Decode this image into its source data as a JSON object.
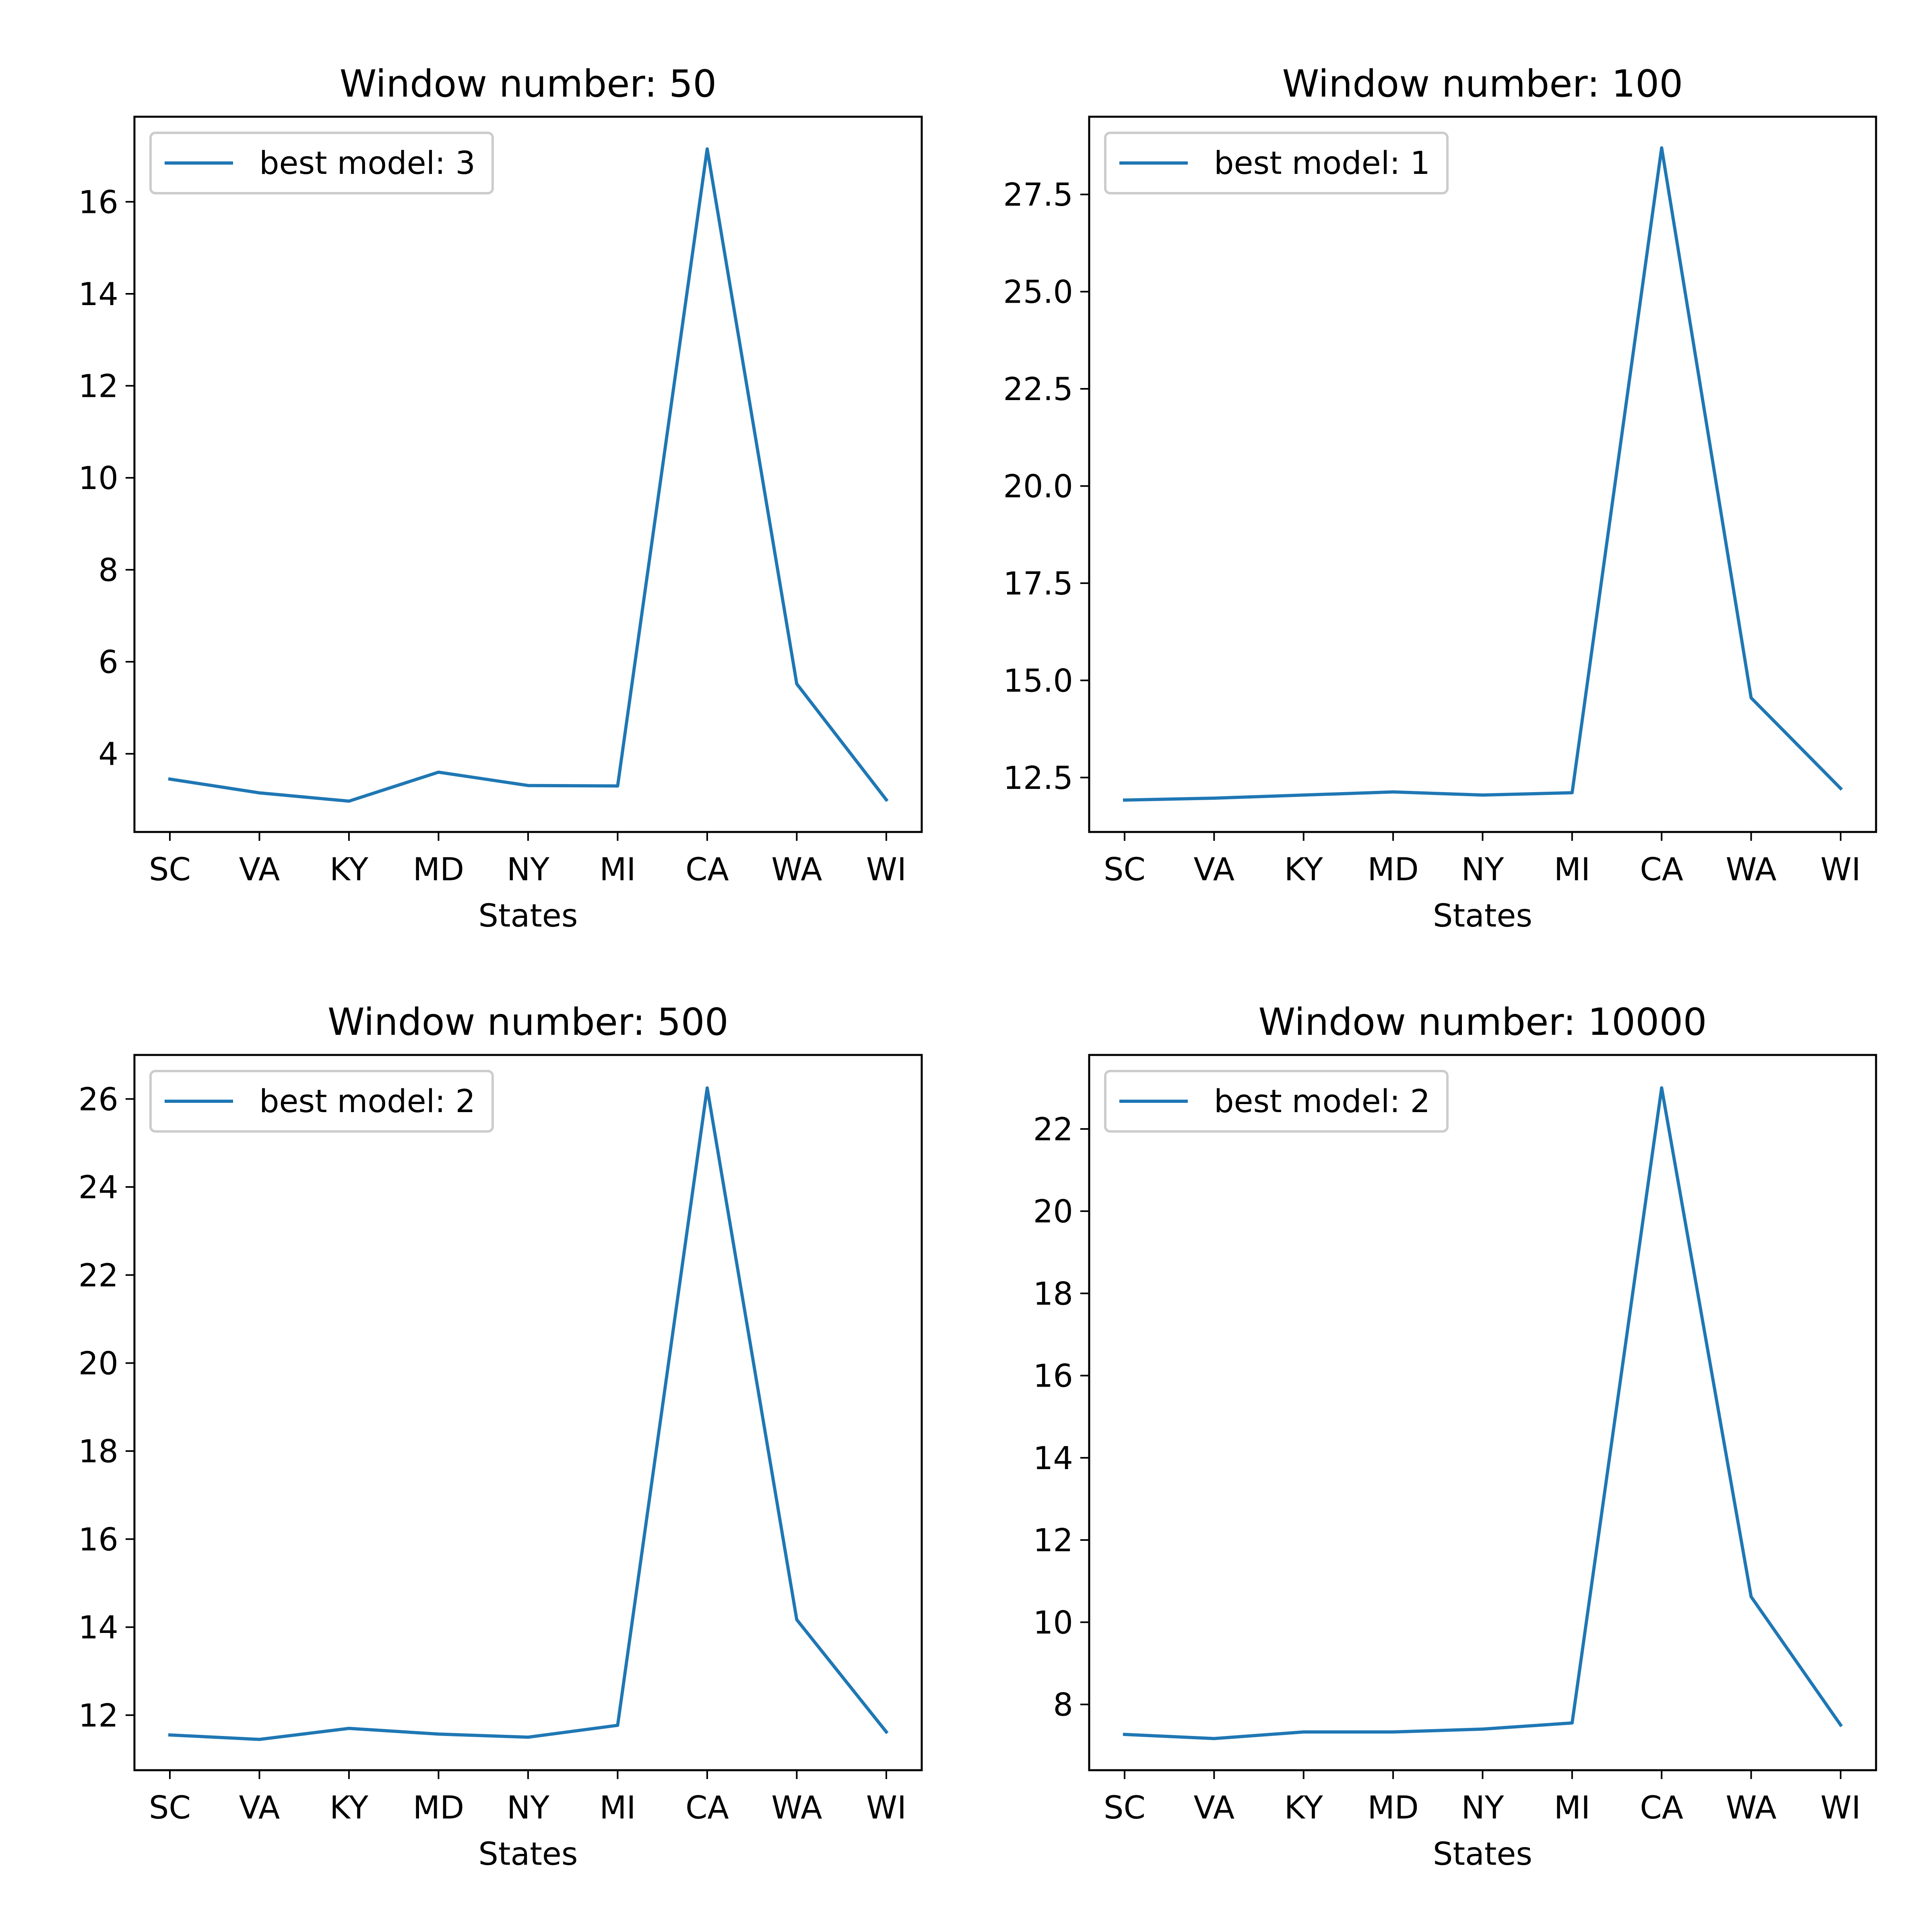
{
  "figure": {
    "background": "#ffffff",
    "line_color": "#1f77b4"
  },
  "chart_data": [
    {
      "type": "line",
      "title": "Window number: 50",
      "xlabel": "States",
      "ylabel": "",
      "categories": [
        "SC",
        "VA",
        "KY",
        "MD",
        "NY",
        "MI",
        "CA",
        "WA",
        "WI"
      ],
      "series": [
        {
          "name": "best model: 3",
          "values": [
            3.45,
            3.15,
            2.97,
            3.6,
            3.31,
            3.3,
            17.15,
            5.52,
            3.0
          ]
        }
      ],
      "ylim": [
        2.3,
        17.85
      ],
      "yticks": [
        4,
        6,
        8,
        10,
        12,
        14,
        16
      ],
      "ytick_labels": [
        "4",
        "6",
        "8",
        "10",
        "12",
        "14",
        "16"
      ],
      "legend": "top-left",
      "grid": false
    },
    {
      "type": "line",
      "title": "Window number: 100",
      "xlabel": "States",
      "ylabel": "",
      "categories": [
        "SC",
        "VA",
        "KY",
        "MD",
        "NY",
        "MI",
        "CA",
        "WA",
        "WI"
      ],
      "series": [
        {
          "name": "best model: 1",
          "values": [
            11.92,
            11.97,
            12.05,
            12.13,
            12.05,
            12.11,
            28.7,
            14.55,
            12.22
          ]
        }
      ],
      "ylim": [
        11.1,
        29.5
      ],
      "yticks": [
        12.5,
        15.0,
        17.5,
        20.0,
        22.5,
        25.0,
        27.5
      ],
      "ytick_labels": [
        "12.5",
        "15.0",
        "17.5",
        "20.0",
        "22.5",
        "25.0",
        "27.5"
      ],
      "legend": "top-left",
      "grid": false
    },
    {
      "type": "line",
      "title": "Window number: 500",
      "xlabel": "States",
      "ylabel": "",
      "categories": [
        "SC",
        "VA",
        "KY",
        "MD",
        "NY",
        "MI",
        "CA",
        "WA",
        "WI"
      ],
      "series": [
        {
          "name": "best model: 2",
          "values": [
            11.55,
            11.45,
            11.7,
            11.57,
            11.5,
            11.77,
            26.25,
            14.17,
            11.62
          ]
        }
      ],
      "ylim": [
        10.75,
        27.0
      ],
      "yticks": [
        12,
        14,
        16,
        18,
        20,
        22,
        24,
        26
      ],
      "ytick_labels": [
        "12",
        "14",
        "16",
        "18",
        "20",
        "22",
        "24",
        "26"
      ],
      "legend": "top-left",
      "grid": false
    },
    {
      "type": "line",
      "title": "Window number: 10000",
      "xlabel": "States",
      "ylabel": "",
      "categories": [
        "SC",
        "VA",
        "KY",
        "MD",
        "NY",
        "MI",
        "CA",
        "WA",
        "WI"
      ],
      "series": [
        {
          "name": "best model: 2",
          "values": [
            7.27,
            7.17,
            7.33,
            7.33,
            7.4,
            7.55,
            23.0,
            10.62,
            7.5
          ]
        }
      ],
      "ylim": [
        6.4,
        23.8
      ],
      "yticks": [
        8,
        10,
        12,
        14,
        16,
        18,
        20,
        22
      ],
      "ytick_labels": [
        "8",
        "10",
        "12",
        "14",
        "16",
        "18",
        "20",
        "22"
      ],
      "legend": "top-left",
      "grid": false
    }
  ]
}
